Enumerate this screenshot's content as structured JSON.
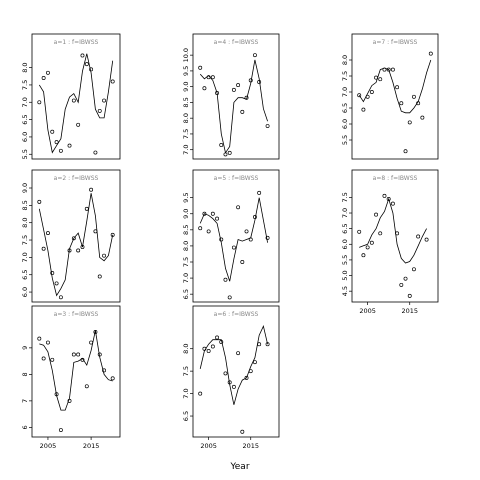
{
  "chart_data": {
    "type": "scatter",
    "xlabel": "Year",
    "colors": {
      "points": "#000000",
      "line": "#000000",
      "strip_text": "#888888",
      "frame": "#000000"
    },
    "panels": [
      {
        "label": "a=1 : f=IBWSS",
        "x_ticks": [],
        "y_ticks": [
          5.5,
          6.0,
          6.5,
          7.0,
          7.5,
          8.0
        ],
        "xlim": [
          2002,
          2021
        ],
        "ylim": [
          5.45,
          8.45
        ],
        "points": {
          "x": [
            2003,
            2004,
            2005,
            2006,
            2007,
            2008,
            2010,
            2011,
            2012,
            2013,
            2014,
            2015,
            2016,
            2017,
            2018,
            2020
          ],
          "y": [
            7.0,
            7.7,
            7.85,
            6.15,
            5.85,
            5.6,
            5.75,
            7.05,
            6.35,
            8.35,
            8.1,
            7.95,
            5.55,
            6.75,
            7.05,
            7.6
          ]
        },
        "line": {
          "x": [
            2003,
            2004,
            2005,
            2006,
            2007,
            2008,
            2009,
            2010,
            2011,
            2012,
            2013,
            2014,
            2015,
            2016,
            2017,
            2018,
            2019,
            2020
          ],
          "y": [
            7.5,
            7.3,
            6.2,
            5.55,
            5.75,
            5.95,
            6.8,
            7.15,
            7.25,
            7.0,
            7.9,
            8.4,
            7.85,
            6.8,
            6.55,
            6.55,
            7.3,
            8.2
          ]
        }
      },
      {
        "label": "a=2 : f=IBWSS",
        "x_ticks": [],
        "y_ticks": [
          6.0,
          6.5,
          7.0,
          7.5,
          8.0,
          8.5,
          9.0
        ],
        "xlim": [
          2002,
          2021
        ],
        "ylim": [
          5.8,
          9.0
        ],
        "points": {
          "x": [
            2003,
            2004,
            2005,
            2006,
            2007,
            2008,
            2010,
            2011,
            2012,
            2013,
            2014,
            2015,
            2016,
            2017,
            2018,
            2020
          ],
          "y": [
            8.6,
            7.25,
            7.7,
            6.55,
            6.25,
            5.85,
            7.2,
            7.55,
            7.2,
            7.3,
            8.4,
            8.95,
            7.75,
            6.45,
            7.05,
            7.65
          ]
        },
        "line": {
          "x": [
            2003,
            2004,
            2005,
            2006,
            2007,
            2008,
            2009,
            2010,
            2011,
            2012,
            2013,
            2014,
            2015,
            2016,
            2017,
            2018,
            2019,
            2020
          ],
          "y": [
            8.4,
            7.8,
            7.2,
            6.4,
            5.9,
            6.1,
            6.35,
            7.25,
            7.55,
            7.7,
            7.3,
            8.05,
            8.85,
            8.2,
            7.0,
            6.9,
            7.05,
            7.65
          ]
        }
      },
      {
        "label": "a=3 : f=IBWSS",
        "x_ticks": [
          2005,
          2015
        ],
        "y_ticks": [
          6,
          7,
          8,
          9
        ],
        "xlim": [
          2002,
          2021
        ],
        "ylim": [
          5.75,
          9.9
        ],
        "points": {
          "x": [
            2003,
            2004,
            2005,
            2006,
            2007,
            2008,
            2010,
            2011,
            2012,
            2013,
            2014,
            2015,
            2016,
            2017,
            2018,
            2020
          ],
          "y": [
            9.35,
            8.6,
            9.2,
            8.55,
            7.25,
            5.9,
            7.0,
            8.75,
            8.75,
            8.55,
            7.55,
            9.2,
            9.6,
            8.75,
            8.15,
            7.85
          ]
        },
        "line": {
          "x": [
            2003,
            2004,
            2005,
            2006,
            2007,
            2008,
            2009,
            2010,
            2011,
            2012,
            2013,
            2014,
            2015,
            2016,
            2017,
            2018,
            2019,
            2020
          ],
          "y": [
            9.15,
            9.1,
            8.85,
            8.15,
            7.2,
            6.65,
            6.65,
            7.1,
            8.45,
            8.5,
            8.6,
            8.35,
            8.9,
            9.65,
            8.65,
            8.0,
            7.8,
            7.75
          ]
        }
      },
      {
        "label": "a=4 : f=IBWSS",
        "x_ticks": [],
        "y_ticks": [
          7.0,
          7.5,
          8.0,
          8.5,
          9.0,
          9.5,
          10.0
        ],
        "xlim": [
          2002,
          2021
        ],
        "ylim": [
          6.8,
          10.1
        ],
        "points": {
          "x": [
            2003,
            2004,
            2005,
            2006,
            2007,
            2008,
            2009,
            2010,
            2011,
            2012,
            2013,
            2014,
            2015,
            2016,
            2017,
            2019
          ],
          "y": [
            9.6,
            8.95,
            9.3,
            9.3,
            8.8,
            7.15,
            6.85,
            6.9,
            8.9,
            9.05,
            8.2,
            8.65,
            9.2,
            10.0,
            9.15,
            7.75
          ]
        },
        "line": {
          "x": [
            2003,
            2004,
            2005,
            2006,
            2007,
            2008,
            2009,
            2010,
            2011,
            2012,
            2013,
            2014,
            2015,
            2016,
            2017,
            2018,
            2019
          ],
          "y": [
            9.4,
            9.25,
            9.35,
            9.2,
            8.8,
            7.5,
            6.9,
            7.1,
            8.5,
            8.65,
            8.65,
            8.6,
            9.1,
            9.85,
            9.25,
            8.3,
            7.9
          ]
        }
      },
      {
        "label": "a=5 : f=IBWSS",
        "x_ticks": [],
        "y_ticks": [
          6.5,
          7.0,
          7.5,
          8.0,
          8.5,
          9.0,
          9.5
        ],
        "xlim": [
          2002,
          2021
        ],
        "ylim": [
          6.35,
          9.8
        ],
        "points": {
          "x": [
            2003,
            2004,
            2005,
            2006,
            2007,
            2008,
            2009,
            2010,
            2011,
            2012,
            2013,
            2014,
            2015,
            2016,
            2017,
            2019
          ],
          "y": [
            8.55,
            9.0,
            8.45,
            9.0,
            8.85,
            8.2,
            6.95,
            6.4,
            7.95,
            9.2,
            7.5,
            8.45,
            8.2,
            8.9,
            9.65,
            8.25
          ]
        },
        "line": {
          "x": [
            2003,
            2004,
            2005,
            2006,
            2007,
            2008,
            2009,
            2010,
            2011,
            2012,
            2013,
            2014,
            2015,
            2016,
            2017,
            2018,
            2019
          ],
          "y": [
            8.7,
            9.0,
            8.95,
            8.85,
            8.7,
            8.1,
            7.3,
            6.9,
            7.6,
            8.2,
            8.15,
            8.2,
            8.25,
            8.8,
            9.5,
            8.8,
            8.1
          ]
        }
      },
      {
        "label": "a=6 : f=IBWSS",
        "x_ticks": [
          2005,
          2015
        ],
        "y_ticks": [
          6.5,
          7.0,
          7.5,
          8.0
        ],
        "xlim": [
          2002,
          2021
        ],
        "ylim": [
          6.1,
          8.55
        ],
        "points": {
          "x": [
            2003,
            2004,
            2005,
            2006,
            2007,
            2008,
            2009,
            2010,
            2011,
            2012,
            2013,
            2014,
            2015,
            2016,
            2017,
            2019
          ],
          "y": [
            7.0,
            8.0,
            7.95,
            8.05,
            8.25,
            8.15,
            7.45,
            7.25,
            7.15,
            7.9,
            6.15,
            7.35,
            7.5,
            7.7,
            8.1,
            8.1
          ]
        },
        "line": {
          "x": [
            2003,
            2004,
            2005,
            2006,
            2007,
            2008,
            2009,
            2010,
            2011,
            2012,
            2013,
            2014,
            2015,
            2016,
            2017,
            2018,
            2019
          ],
          "y": [
            7.55,
            7.95,
            8.1,
            8.2,
            8.2,
            8.2,
            7.8,
            7.2,
            6.75,
            7.1,
            7.3,
            7.35,
            7.6,
            7.8,
            8.3,
            8.5,
            8.1
          ]
        }
      },
      {
        "label": "a=7 : f=IBWSS",
        "x_ticks": [],
        "y_ticks": [
          5.5,
          6.0,
          6.5,
          7.0,
          7.5,
          8.0
        ],
        "xlim": [
          2002,
          2021
        ],
        "ylim": [
          5.0,
          8.25
        ],
        "points": {
          "x": [
            2003,
            2004,
            2005,
            2006,
            2007,
            2008,
            2009,
            2010,
            2011,
            2012,
            2013,
            2014,
            2015,
            2016,
            2017,
            2018,
            2020
          ],
          "y": [
            6.9,
            6.45,
            6.85,
            7.0,
            7.45,
            7.4,
            7.7,
            7.7,
            7.7,
            7.15,
            6.65,
            5.15,
            6.05,
            6.85,
            6.65,
            6.2,
            8.2
          ]
        },
        "line": {
          "x": [
            2003,
            2004,
            2005,
            2006,
            2007,
            2008,
            2009,
            2010,
            2011,
            2012,
            2013,
            2014,
            2015,
            2016,
            2017,
            2018,
            2019,
            2020
          ],
          "y": [
            6.9,
            6.7,
            6.95,
            7.2,
            7.3,
            7.7,
            7.75,
            7.7,
            7.3,
            6.8,
            6.4,
            6.35,
            6.35,
            6.5,
            6.7,
            7.1,
            7.6,
            8.0
          ]
        }
      },
      {
        "label": "a=8 : f=IBWSS",
        "x_ticks": [
          2005,
          2015
        ],
        "y_ticks": [
          4.5,
          5.0,
          5.5,
          6.0,
          6.5,
          7.0,
          7.5
        ],
        "xlim": [
          2002,
          2021
        ],
        "ylim": [
          4.25,
          7.8
        ],
        "points": {
          "x": [
            2003,
            2004,
            2005,
            2006,
            2007,
            2008,
            2009,
            2010,
            2011,
            2012,
            2013,
            2014,
            2015,
            2016,
            2017,
            2019
          ],
          "y": [
            6.4,
            5.65,
            5.9,
            6.05,
            6.95,
            6.35,
            7.55,
            7.45,
            7.3,
            6.35,
            4.7,
            4.9,
            4.35,
            5.2,
            6.25,
            6.15
          ]
        },
        "line": {
          "x": [
            2003,
            2004,
            2005,
            2006,
            2007,
            2008,
            2009,
            2010,
            2011,
            2012,
            2013,
            2014,
            2015,
            2016,
            2017,
            2018,
            2019
          ],
          "y": [
            5.9,
            5.95,
            6.0,
            6.3,
            6.5,
            6.85,
            7.05,
            7.45,
            7.0,
            6.0,
            5.55,
            5.4,
            5.45,
            5.65,
            5.95,
            6.25,
            6.5
          ]
        }
      }
    ]
  }
}
